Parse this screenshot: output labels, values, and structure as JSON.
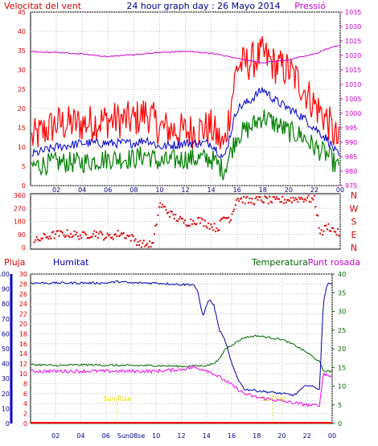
{
  "title": "24 hour graph day : 26 Mayo 2014",
  "top_panel": {
    "left_label": "Velocitat del vent",
    "right_label": "Pressió",
    "left_ticks": [
      0,
      5,
      10,
      15,
      20,
      25,
      30,
      35,
      40,
      45
    ],
    "right_ticks": [
      975,
      980,
      985,
      990,
      995,
      1000,
      1005,
      1010,
      1015,
      1020,
      1025,
      1030,
      1035
    ]
  },
  "direction_panel": {
    "left_ticks": [
      360,
      270,
      180,
      90,
      0
    ],
    "compass": [
      "N",
      "W",
      "S",
      "E",
      "N"
    ]
  },
  "bottom_panel": {
    "label_rain": "Pluja",
    "label_humidity": "Humitat",
    "label_temperature": "Temperatura",
    "label_dewpoint": "Punt rosada",
    "rain_ticks": [
      0,
      10,
      20,
      30,
      40,
      50,
      60,
      70,
      80,
      90,
      100
    ],
    "humidity_ticks": [
      0,
      2,
      4,
      6,
      8,
      10,
      12,
      14,
      16,
      18,
      20,
      22,
      24,
      26,
      28,
      30
    ],
    "temp_ticks": [
      0,
      5,
      10,
      15,
      20,
      25,
      30,
      35,
      40
    ],
    "sun_rise_label": "Sun Rise",
    "sun_set_label": "Sun Set"
  },
  "x_ticks_top": [
    "02",
    "04",
    "06",
    "08",
    "10",
    "12",
    "14",
    "16",
    "18",
    "20",
    "22",
    "00"
  ],
  "x_ticks_bottom": [
    "02",
    "04",
    "06",
    "Sun08se",
    "10",
    "12",
    "14",
    "16",
    "18",
    "20",
    "22",
    "00"
  ],
  "colors": {
    "gust": "#ff0000",
    "wind_avg": "#0000cc",
    "wind_min": "#008000",
    "pressure": "#cc00cc",
    "direction": "#dd0000",
    "humidity": "#0000aa",
    "temperature": "#006600",
    "dewpoint": "#ee00ee",
    "rain": "#ff0000",
    "sun": "#e0e000"
  },
  "chart_data": [
    {
      "type": "line",
      "x_range_hours": [
        0,
        24
      ],
      "y_left_range": [
        0,
        45
      ],
      "y_right_range": [
        975,
        1035
      ],
      "series": [
        {
          "name": "",
          "axis": "left",
          "x": [
            0,
            2,
            4,
            6,
            8,
            9,
            10,
            12,
            14,
            15,
            16,
            17,
            18,
            19,
            20,
            21,
            22,
            23,
            24
          ],
          "values": [
            12,
            16,
            16,
            17,
            17,
            19,
            15,
            14,
            15,
            10,
            31,
            32,
            34,
            31,
            30,
            26,
            21,
            17,
            10
          ]
        },
        {
          "name": "",
          "axis": "left",
          "x": [
            0,
            2,
            4,
            6,
            8,
            9,
            10,
            12,
            14,
            15,
            16,
            17,
            18,
            19,
            20,
            21,
            22,
            23,
            24
          ],
          "values": [
            8,
            10,
            11,
            11,
            11,
            12,
            10,
            11,
            11,
            7,
            20,
            22,
            25,
            22,
            20,
            18,
            15,
            12,
            7
          ]
        },
        {
          "name": "",
          "axis": "left",
          "x": [
            0,
            2,
            4,
            6,
            8,
            9,
            10,
            12,
            14,
            15,
            16,
            17,
            18,
            19,
            20,
            21,
            22,
            23,
            24
          ],
          "values": [
            5,
            6,
            6,
            7,
            7,
            8,
            6,
            7,
            7,
            4,
            13,
            15,
            18,
            16,
            14,
            13,
            10,
            8,
            4
          ]
        },
        {
          "name": "Pressió",
          "axis": "right",
          "x": [
            0,
            2,
            4,
            6,
            8,
            10,
            12,
            14,
            16,
            18,
            20,
            22,
            23,
            24
          ],
          "values": [
            1021.3,
            1021,
            1020.5,
            1019.6,
            1020.3,
            1021,
            1021.4,
            1020.8,
            1019,
            1017.5,
            1018.5,
            1020.5,
            1022.3,
            1023.6
          ]
        }
      ]
    },
    {
      "type": "scatter",
      "x_range_hours": [
        0,
        24
      ],
      "y_range": [
        0,
        360
      ],
      "series": [
        {
          "name": "",
          "x": [
            0.3,
            1,
            2,
            3,
            4,
            5,
            6,
            7,
            8,
            8.5,
            9,
            9.5,
            10,
            11,
            12,
            13,
            14,
            14.5,
            15,
            15.5,
            16,
            17,
            18,
            19,
            20,
            21,
            22,
            22.5,
            23,
            23.5,
            23.8
          ],
          "values": [
            40,
            70,
            90,
            95,
            80,
            100,
            70,
            100,
            60,
            25,
            20,
            20,
            300,
            220,
            170,
            190,
            150,
            130,
            210,
            200,
            340,
            320,
            330,
            320,
            330,
            340,
            330,
            90,
            150,
            120,
            100
          ]
        }
      ]
    },
    {
      "type": "line",
      "x_range_hours": [
        0,
        24
      ],
      "y_humidity_range": [
        0,
        100
      ],
      "y_temp_range": [
        0,
        40
      ],
      "series": [
        {
          "name": "Humitat",
          "x": [
            0,
            2,
            4,
            6,
            7,
            8,
            10,
            12,
            13,
            13.3,
            13.7,
            14.2,
            14.6,
            15,
            15.5,
            16,
            16.5,
            17,
            18,
            19,
            20,
            21,
            22,
            23,
            23.3,
            23.6,
            24
          ],
          "values": [
            94,
            94,
            94,
            94,
            95,
            94,
            94,
            93,
            93,
            88,
            72,
            83,
            79,
            63,
            55,
            40,
            30,
            23,
            22,
            21,
            20,
            19,
            26,
            23,
            82,
            93,
            94
          ]
        },
        {
          "name": "Temperatura",
          "x": [
            0,
            2,
            4,
            6,
            8,
            10,
            12,
            14,
            14.5,
            15,
            15.5,
            16,
            16.5,
            17,
            18,
            19,
            20,
            21,
            22,
            23,
            23.3,
            24
          ],
          "values": [
            15.8,
            15.5,
            15.7,
            15.6,
            15.5,
            15.5,
            15.3,
            15.5,
            16,
            17,
            20,
            21,
            22,
            23,
            23.5,
            23,
            22.5,
            21,
            19,
            16.5,
            14,
            14
          ]
        },
        {
          "name": "Punt rosada",
          "x": [
            0,
            2,
            4,
            6,
            8,
            10,
            12,
            13,
            14,
            15,
            16,
            17,
            18,
            19,
            20,
            21,
            22,
            22.5,
            23,
            23.3,
            23.6,
            24
          ],
          "values": [
            14,
            14,
            14,
            14,
            14,
            14,
            14.5,
            15,
            14.3,
            12.5,
            10.3,
            8,
            7,
            6.5,
            6,
            5.5,
            5,
            4.8,
            5,
            13.5,
            13,
            12.5
          ]
        },
        {
          "name": "Pluja",
          "x": [
            0,
            24
          ],
          "values": [
            0,
            0
          ]
        }
      ]
    }
  ]
}
